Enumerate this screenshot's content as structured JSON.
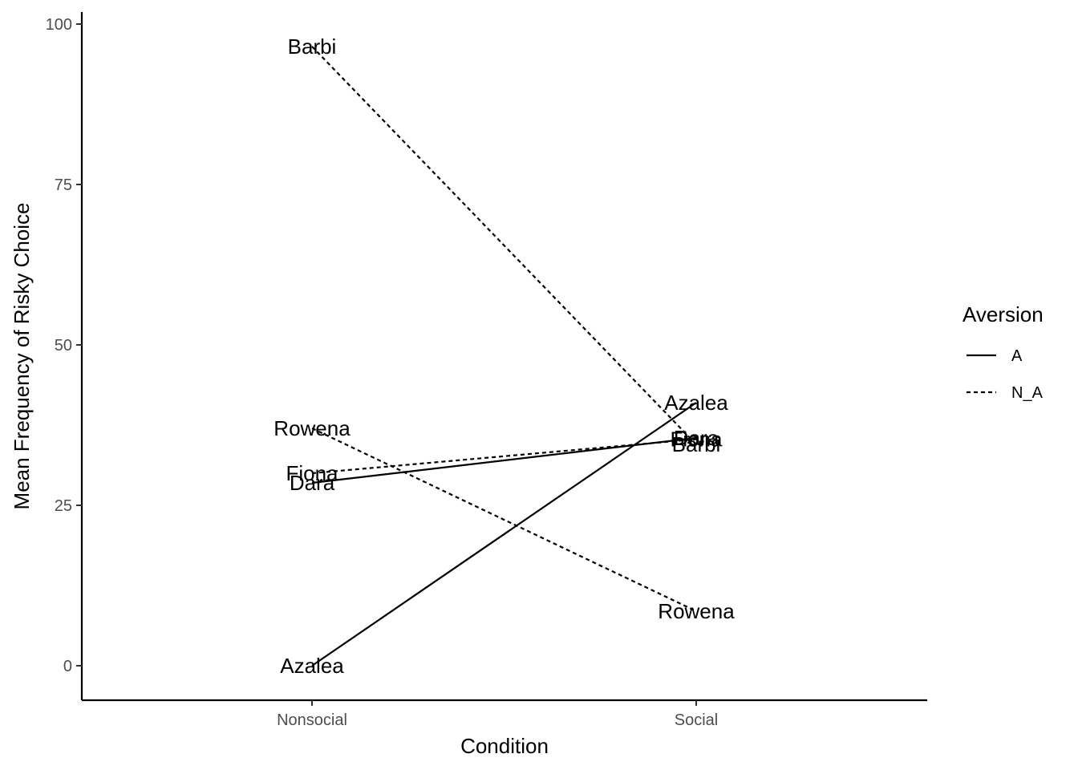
{
  "chart_data": {
    "type": "line",
    "xlabel": "Condition",
    "ylabel": "Mean Frequency of Risky Choice",
    "categories": [
      "Nonsocial",
      "Social"
    ],
    "ylim": [
      -5,
      102
    ],
    "yticks": [
      0,
      25,
      50,
      75,
      100
    ],
    "grid": false,
    "legend": {
      "title": "Aversion",
      "position": "right",
      "entries": [
        {
          "label": "A",
          "linetype": "solid"
        },
        {
          "label": "N_A",
          "linetype": "dashed"
        }
      ]
    },
    "series": [
      {
        "name": "Azalea",
        "group": "A",
        "values": [
          0,
          41
        ]
      },
      {
        "name": "Dara",
        "group": "A",
        "values": [
          28.5,
          35.5
        ]
      },
      {
        "name": "Barbi",
        "group": "N_A",
        "values": [
          96.5,
          34.5
        ]
      },
      {
        "name": "Fiona",
        "group": "N_A",
        "values": [
          30,
          35.3
        ]
      },
      {
        "name": "Rowena",
        "group": "N_A",
        "values": [
          37,
          8.5
        ]
      }
    ],
    "point_labels": [
      {
        "text": "Barbi",
        "x": "Nonsocial",
        "y": 96.5
      },
      {
        "text": "Rowena",
        "x": "Nonsocial",
        "y": 37
      },
      {
        "text": "Fiona",
        "x": "Nonsocial",
        "y": 30
      },
      {
        "text": "Dara",
        "x": "Nonsocial",
        "y": 28.5
      },
      {
        "text": "Azalea",
        "x": "Nonsocial",
        "y": 0
      },
      {
        "text": "Azalea",
        "x": "Social",
        "y": 41
      },
      {
        "text": "Dara",
        "x": "Social",
        "y": 35.5
      },
      {
        "text": "Fiona",
        "x": "Social",
        "y": 35.3
      },
      {
        "text": "Barbi",
        "x": "Social",
        "y": 34.5
      },
      {
        "text": "Rowena",
        "x": "Social",
        "y": 8.5
      }
    ]
  }
}
